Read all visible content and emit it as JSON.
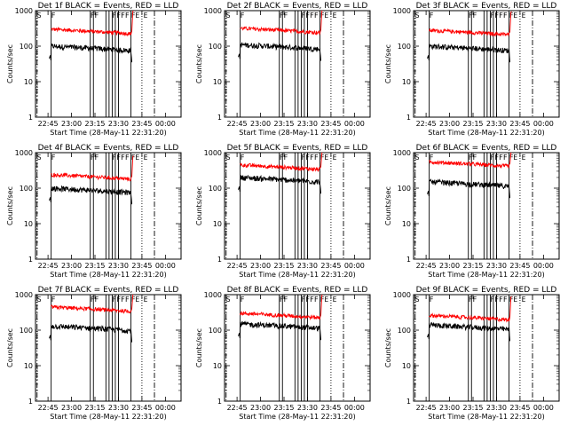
{
  "chart_data": {
    "type": "line",
    "log_y": true,
    "ylim": [
      1,
      1000
    ],
    "y_ticks": [
      "1",
      "10",
      "100",
      "1000"
    ],
    "x_ticks": [
      "22:45",
      "23:00",
      "23:15",
      "23:30",
      "23:45",
      "00:00"
    ],
    "x_tick_minutes": [
      -15,
      0,
      15,
      30,
      45,
      60
    ],
    "xlim_minutes": [
      -23,
      70
    ],
    "ylabel": "Counts/sec",
    "xlabel": "Start Time (28-May-11 22:31:20)",
    "colors": {
      "events": "#000000",
      "lld": "#ff0000"
    },
    "markers": [
      {
        "text": "S",
        "at": -22
      },
      {
        "text": "F",
        "at": -13
      },
      {
        "text": "FF",
        "at": 12
      },
      {
        "text": "FFFF",
        "at": 26
      },
      {
        "text": "FE",
        "at": 38
      },
      {
        "text": "E",
        "at": 46
      }
    ],
    "vlines_solid": [
      -13,
      12,
      14,
      22,
      24,
      26,
      28,
      30,
      38
    ],
    "vlines_dotted": [
      45
    ],
    "vlines_dashdot": [
      -22,
      53
    ],
    "panels": [
      {
        "title": "Det 1f BLACK = Events, RED = LLD",
        "lld": 300,
        "events": 100
      },
      {
        "title": "Det 2f BLACK = Events, RED = LLD",
        "lld": 320,
        "events": 110
      },
      {
        "title": "Det 3f BLACK = Events, RED = LLD",
        "lld": 280,
        "events": 100
      },
      {
        "title": "Det 4f BLACK = Events, RED = LLD",
        "lld": 240,
        "events": 100
      },
      {
        "title": "Det 5f BLACK = Events, RED = LLD",
        "lld": 450,
        "events": 200
      },
      {
        "title": "Det 6f BLACK = Events, RED = LLD",
        "lld": 550,
        "events": 150
      },
      {
        "title": "Det 7f BLACK = Events, RED = LLD",
        "lld": 450,
        "events": 130
      },
      {
        "title": "Det 8f BLACK = Events, RED = LLD",
        "lld": 300,
        "events": 150
      },
      {
        "title": "Det 9f BLACK = Events, RED = LLD",
        "lld": 260,
        "events": 140
      }
    ]
  }
}
